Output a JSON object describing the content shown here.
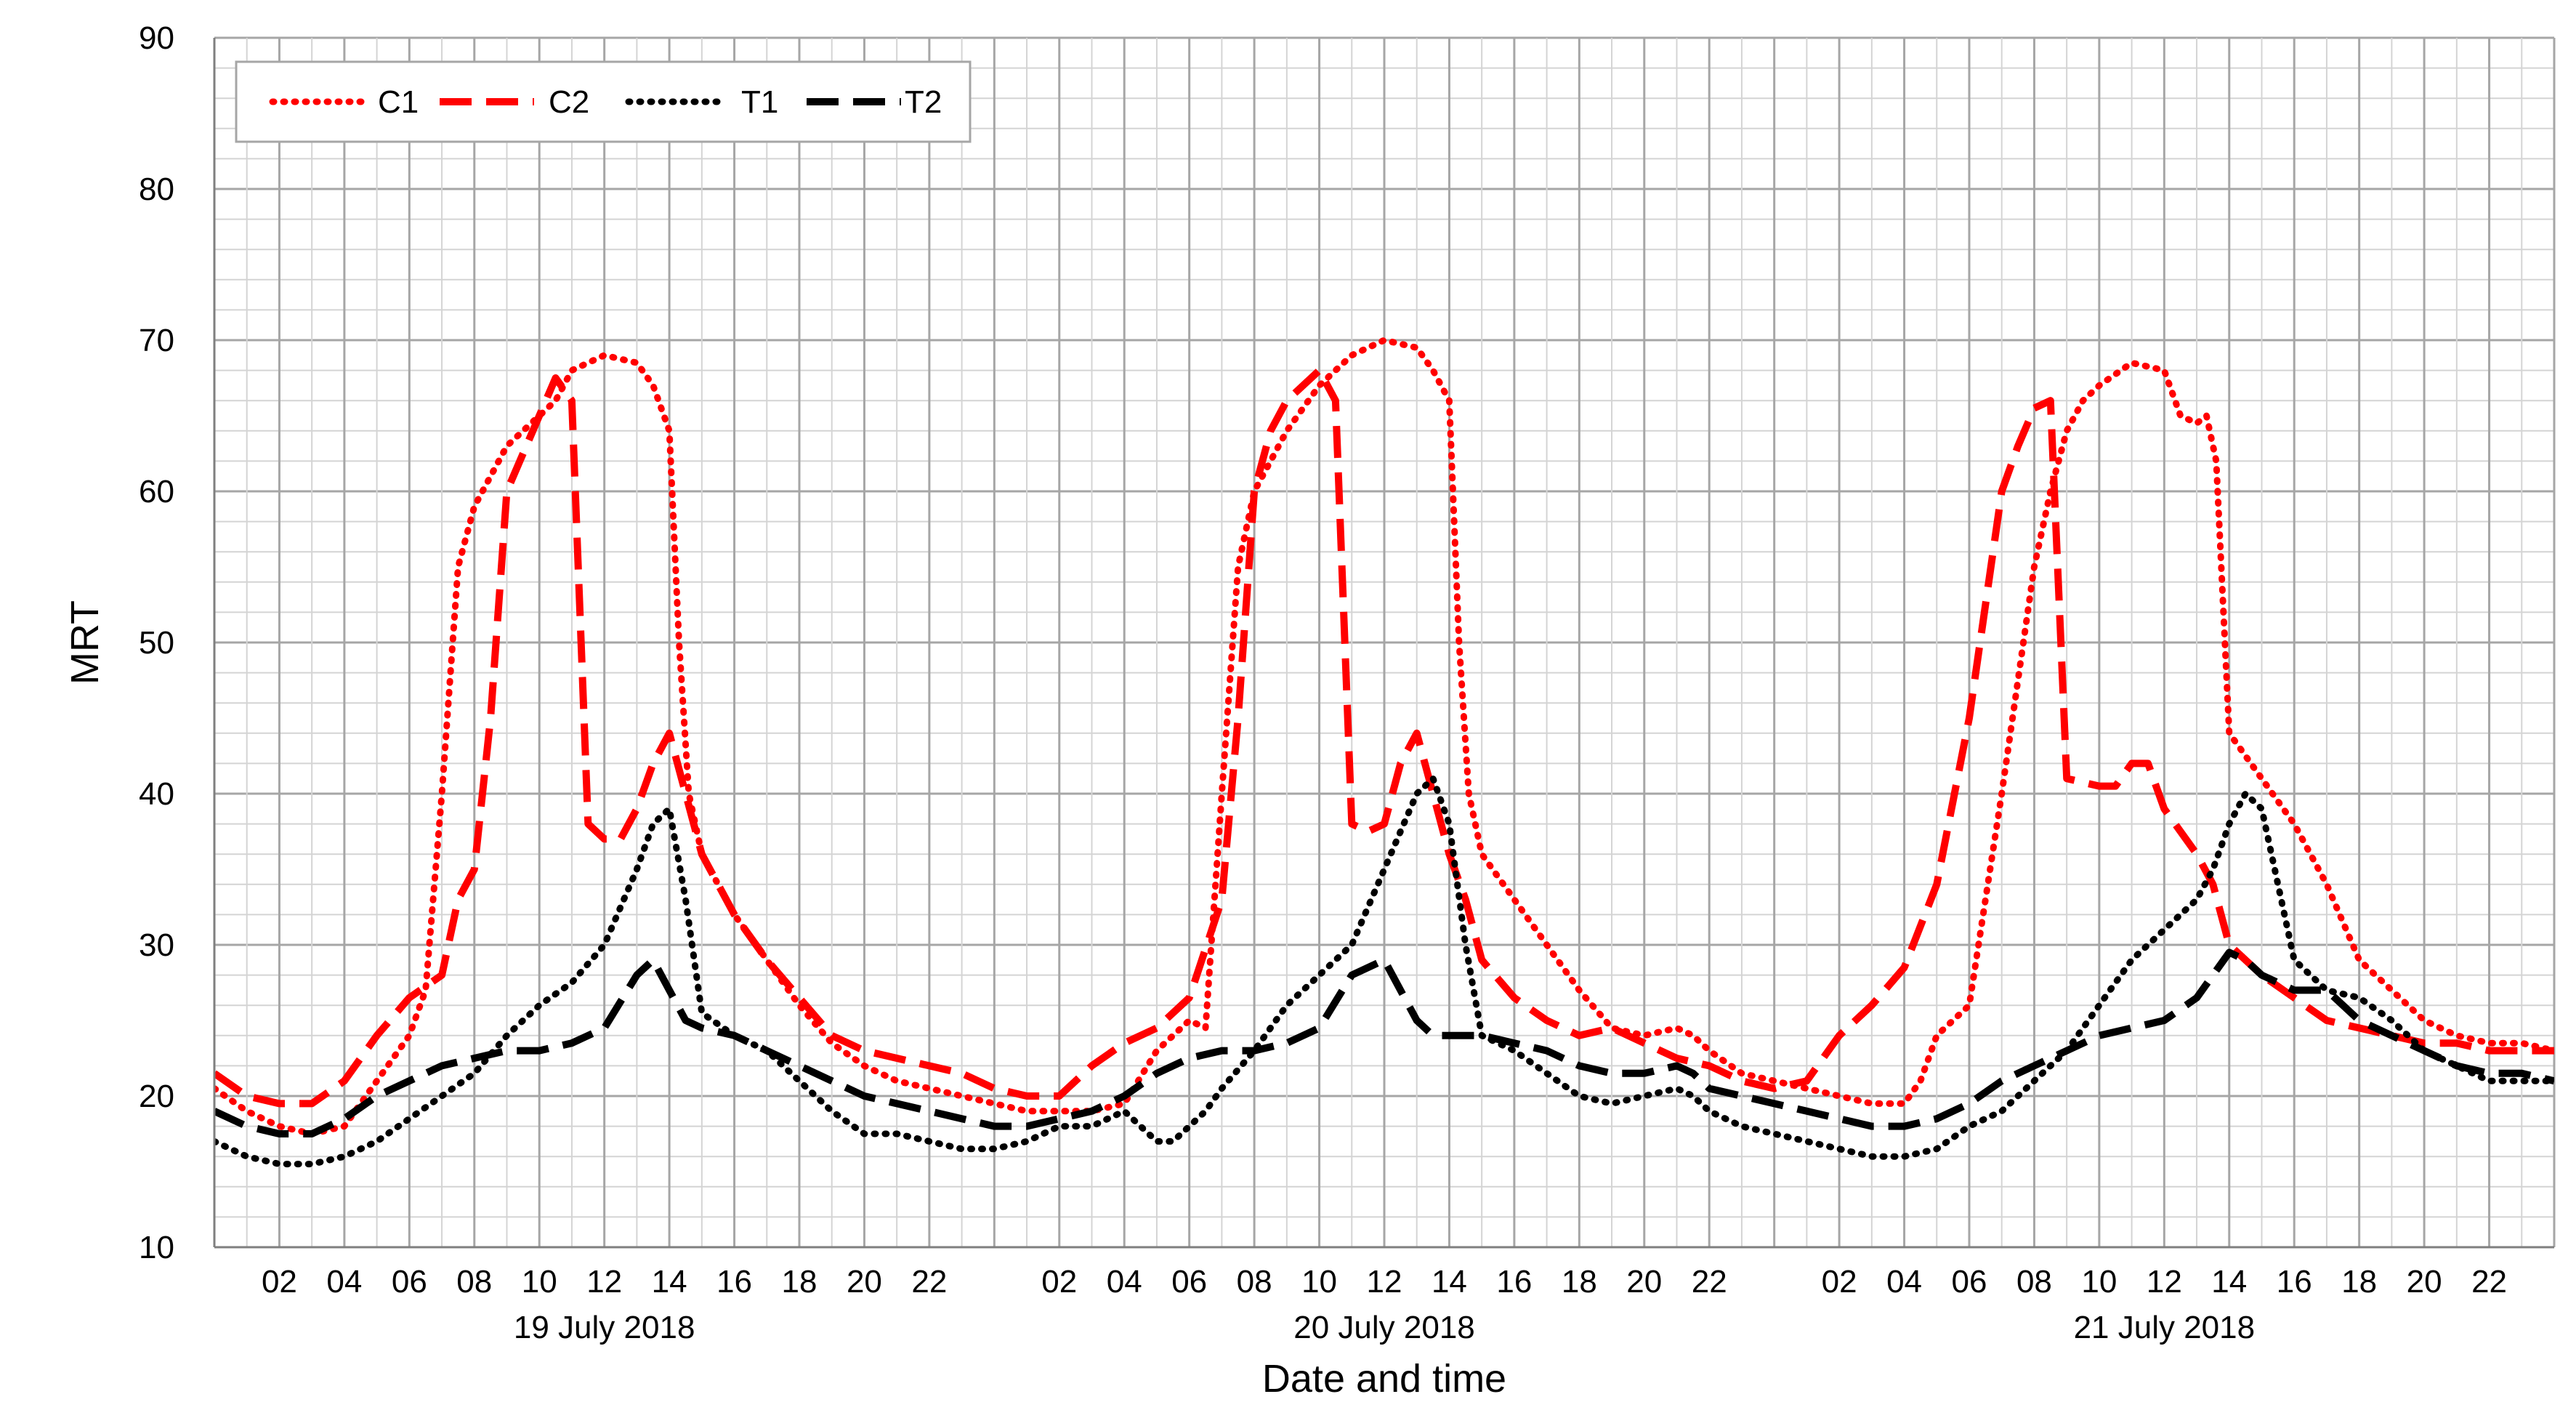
{
  "chart_data": {
    "type": "line",
    "title": "",
    "xlabel": "Date and time",
    "ylabel": "MRT",
    "ylim": [
      10,
      90
    ],
    "yticks": [
      "10",
      "20",
      "30",
      "40",
      "50",
      "60",
      "70",
      "80",
      "90"
    ],
    "xlim_hours": [
      0,
      72
    ],
    "x_unit": "hour",
    "hour_tick_labels": [
      "02",
      "04",
      "06",
      "08",
      "10",
      "12",
      "14",
      "16",
      "18",
      "20",
      "22"
    ],
    "days": [
      "19 July 2018",
      "20 July 2018",
      "21 July 2018"
    ],
    "grid": true,
    "legend_position": "top-left",
    "series": [
      {
        "name": "C1",
        "color": "#ff0000",
        "dash": "dotted",
        "x": [
          0,
          1,
          2,
          3,
          4,
          5,
          6,
          6.5,
          7,
          7.5,
          8,
          9,
          10,
          10.5,
          11,
          12,
          13,
          13.5,
          14,
          14.3,
          14.6,
          15,
          16,
          17,
          18,
          19,
          20,
          21,
          22,
          23,
          24,
          25,
          26,
          27,
          28,
          29,
          30,
          30.5,
          31,
          31.5,
          32,
          33,
          34,
          34.5,
          35,
          36,
          37,
          37.5,
          38,
          38.3,
          38.6,
          39,
          40,
          41,
          42,
          43,
          44,
          45,
          45.5,
          46,
          47,
          48,
          49,
          50,
          51,
          52,
          52.5,
          53,
          53.5,
          54,
          55,
          56,
          56.5,
          57,
          57.5,
          58,
          59,
          60,
          60.5,
          61,
          61.3,
          61.6,
          62,
          63,
          64,
          65,
          66,
          67,
          68,
          69,
          70,
          71,
          72
        ],
        "y": [
          20.5,
          19,
          18,
          17.5,
          18,
          21,
          24,
          27,
          40,
          55,
          59,
          63,
          65,
          66,
          68,
          69,
          68.5,
          67,
          64,
          50,
          40,
          36,
          32,
          29,
          26,
          23.5,
          22,
          21,
          20.5,
          20,
          19.5,
          19,
          19,
          19,
          19.5,
          23,
          25,
          24.5,
          40,
          55,
          60,
          64,
          67,
          68,
          69,
          70,
          69.5,
          68,
          66,
          50,
          40,
          36,
          33,
          30,
          27,
          24.5,
          24,
          24.5,
          24,
          23,
          21.5,
          21,
          20.5,
          20,
          19.5,
          19.5,
          21,
          24,
          25,
          26,
          40,
          55,
          60,
          64,
          66,
          67,
          68.5,
          68,
          65,
          64.5,
          65,
          62,
          44,
          41,
          38,
          34,
          29,
          27,
          25,
          24,
          23.5,
          23.5,
          23
        ]
      },
      {
        "name": "C2",
        "color": "#ff0000",
        "dash": "dashed",
        "x": [
          0,
          1,
          2,
          3,
          4,
          5,
          6,
          7,
          7.5,
          8,
          8.5,
          9,
          10,
          10.5,
          11,
          11.5,
          12,
          12.5,
          13,
          13.5,
          14,
          14.5,
          15,
          16,
          17,
          18,
          19,
          20,
          21,
          22,
          23,
          24,
          25,
          26,
          27,
          28,
          29,
          30,
          31,
          31.5,
          32,
          32.5,
          33,
          34,
          34.5,
          35,
          35.5,
          36,
          36.5,
          37,
          37.5,
          38,
          38.5,
          39,
          40,
          41,
          42,
          43,
          44,
          45,
          46,
          47,
          48,
          49,
          50,
          51,
          52,
          53,
          54,
          55,
          55.5,
          56,
          56.5,
          57,
          58,
          58.5,
          59,
          59.5,
          60,
          61,
          61.5,
          62,
          63,
          64,
          65,
          66,
          67,
          68,
          69,
          70,
          71,
          72
        ],
        "y": [
          21.5,
          20,
          19.5,
          19.5,
          21,
          24,
          26.5,
          28,
          33,
          35,
          45,
          60,
          65,
          67.5,
          66,
          38,
          37,
          37,
          39,
          42,
          44,
          40,
          36,
          32,
          29,
          26.5,
          24,
          23,
          22.5,
          22,
          21.5,
          20.5,
          20,
          20,
          22,
          23.5,
          24.5,
          26.5,
          33,
          45,
          60,
          64,
          66,
          68,
          66,
          38,
          37.5,
          38,
          42,
          44,
          40,
          36,
          33,
          29,
          26.5,
          25,
          24,
          24.5,
          23.5,
          22.5,
          22,
          21,
          20.5,
          21,
          24,
          26,
          28.5,
          34,
          45,
          60,
          63,
          65.5,
          66,
          41,
          40.5,
          40.5,
          42,
          42,
          39,
          36,
          34,
          30,
          28,
          26.5,
          25,
          24.5,
          24,
          23.5,
          23.5,
          23,
          23,
          23
        ]
      },
      {
        "name": "T1",
        "color": "#000000",
        "dash": "dotted",
        "x": [
          0,
          1,
          2,
          3,
          4,
          5,
          6,
          7,
          8,
          9,
          10,
          11,
          12,
          13,
          13.5,
          14,
          14.5,
          15,
          16,
          17,
          18,
          19,
          20,
          21,
          22,
          23,
          24,
          25,
          26,
          27,
          28,
          29,
          29.5,
          30,
          30.5,
          31,
          32,
          33,
          34,
          35,
          36,
          37,
          37.5,
          38,
          38.5,
          39,
          40,
          41,
          42,
          43,
          44,
          45,
          45.5,
          46,
          47,
          48,
          49,
          50,
          51,
          52,
          53,
          54,
          55,
          56,
          57,
          58,
          59,
          60,
          61,
          61.5,
          62,
          62.5,
          63,
          64,
          65,
          66,
          67,
          68,
          69,
          70,
          71,
          72
        ],
        "y": [
          17,
          16,
          15.5,
          15.5,
          16,
          17,
          18.5,
          20,
          21.5,
          24,
          26,
          27.5,
          30,
          35,
          38,
          39,
          33,
          25.5,
          24,
          23,
          21,
          19,
          17.5,
          17.5,
          17,
          16.5,
          16.5,
          17,
          18,
          18,
          19,
          17,
          17,
          18,
          19,
          20.5,
          23,
          26,
          28,
          30,
          35,
          40,
          41,
          38,
          30,
          24,
          23,
          21.5,
          20,
          19.5,
          20,
          20.5,
          20,
          19,
          18,
          17.5,
          17,
          16.5,
          16,
          16,
          16.5,
          18,
          19,
          21,
          23,
          26,
          29,
          31,
          33,
          35,
          38,
          40,
          39,
          29,
          27,
          26.5,
          25,
          23,
          22,
          21,
          21,
          21
        ]
      },
      {
        "name": "T2",
        "color": "#000000",
        "dash": "dashed",
        "x": [
          0,
          1,
          2,
          3,
          4,
          5,
          6,
          7,
          8,
          9,
          10,
          11,
          12,
          13,
          13.5,
          14,
          14.5,
          15,
          16,
          17,
          18,
          19,
          20,
          21,
          22,
          23,
          24,
          25,
          26,
          27,
          28,
          29,
          30,
          31,
          32,
          33,
          34,
          35,
          36,
          37,
          37.5,
          38,
          38.5,
          39,
          40,
          41,
          42,
          43,
          44,
          45,
          45.5,
          46,
          47,
          48,
          49,
          50,
          51,
          52,
          53,
          54,
          55,
          56,
          57,
          58,
          59,
          60,
          61,
          61.5,
          62,
          62.5,
          63,
          64,
          65,
          66,
          67,
          68,
          69,
          70,
          71,
          72
        ],
        "y": [
          19,
          18,
          17.5,
          17.5,
          18.5,
          20,
          21,
          22,
          22.5,
          23,
          23,
          23.5,
          24.5,
          28,
          29,
          27,
          25,
          24.5,
          24,
          23,
          22,
          21,
          20,
          19.5,
          19,
          18.5,
          18,
          18,
          18.5,
          19,
          20,
          21.5,
          22.5,
          23,
          23,
          23.5,
          24.5,
          28,
          29,
          25,
          24,
          24,
          24,
          24,
          23.5,
          23,
          22,
          21.5,
          21.5,
          22,
          21.5,
          20.5,
          20,
          19.5,
          19,
          18.5,
          18,
          18,
          18.5,
          19.5,
          21,
          22,
          23,
          24,
          24.5,
          25,
          26.5,
          28,
          29.5,
          29,
          28,
          27,
          27,
          25,
          24,
          23,
          22,
          21.5,
          21.5,
          21
        ]
      }
    ]
  }
}
